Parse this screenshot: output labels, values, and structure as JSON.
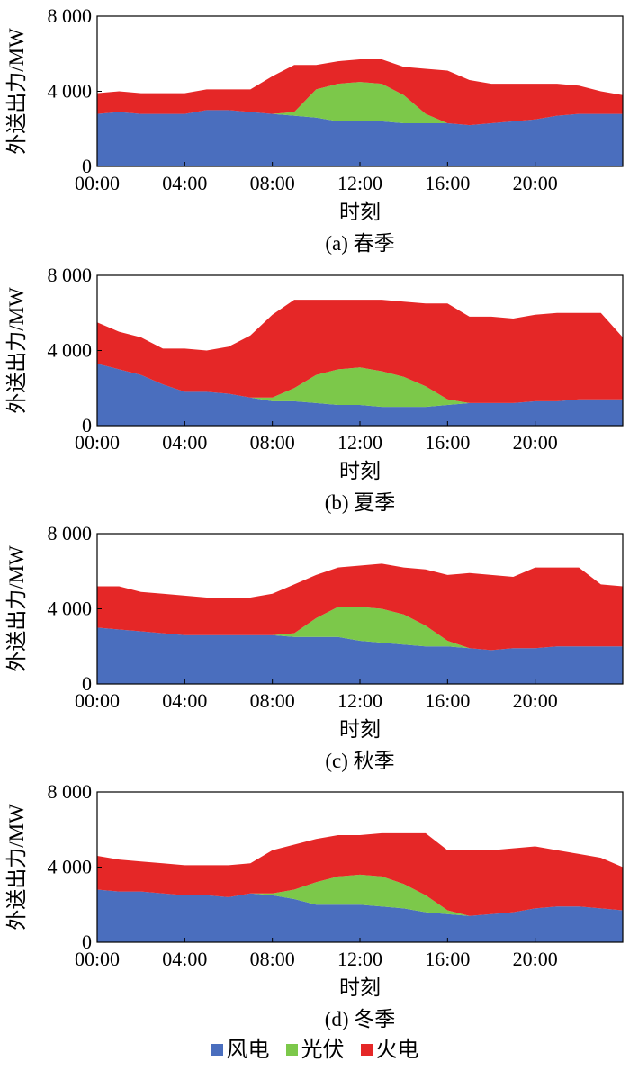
{
  "chart_data": [
    {
      "type": "area",
      "caption": "(a) 春季",
      "xlabel": "时刻",
      "ylabel": "外送出力/MW",
      "ylim": [
        0,
        8000
      ],
      "yticks": [
        "0",
        "4 000",
        "8 000"
      ],
      "xticks": [
        "00:00",
        "04:00",
        "08:00",
        "12:00",
        "16:00",
        "20:00"
      ],
      "x_hours": [
        0,
        1,
        2,
        3,
        4,
        5,
        6,
        7,
        8,
        9,
        10,
        11,
        12,
        13,
        14,
        15,
        16,
        17,
        18,
        19,
        20,
        21,
        22,
        23,
        24
      ],
      "stacked": true,
      "series": [
        {
          "name": "风电",
          "values": [
            2800,
            2900,
            2800,
            2800,
            2800,
            3000,
            3000,
            2900,
            2800,
            2700,
            2600,
            2400,
            2400,
            2400,
            2300,
            2300,
            2300,
            2200,
            2300,
            2400,
            2500,
            2700,
            2800,
            2800,
            2800
          ]
        },
        {
          "name": "光伏",
          "values": [
            0,
            0,
            0,
            0,
            0,
            0,
            0,
            0,
            0,
            200,
            1500,
            2000,
            2100,
            2000,
            1500,
            500,
            0,
            0,
            0,
            0,
            0,
            0,
            0,
            0,
            0
          ]
        },
        {
          "name": "火电",
          "values": [
            1100,
            1100,
            1100,
            1100,
            1100,
            1100,
            1100,
            1200,
            2000,
            2500,
            1300,
            1200,
            1200,
            1300,
            1500,
            2400,
            2800,
            2400,
            2100,
            2000,
            1900,
            1700,
            1500,
            1200,
            1000
          ]
        }
      ]
    },
    {
      "type": "area",
      "caption": "(b) 夏季",
      "xlabel": "时刻",
      "ylabel": "外送出力/MW",
      "ylim": [
        0,
        8000
      ],
      "yticks": [
        "0",
        "4 000",
        "8 000"
      ],
      "xticks": [
        "00:00",
        "04:00",
        "08:00",
        "12:00",
        "16:00",
        "20:00"
      ],
      "x_hours": [
        0,
        1,
        2,
        3,
        4,
        5,
        6,
        7,
        8,
        9,
        10,
        11,
        12,
        13,
        14,
        15,
        16,
        17,
        18,
        19,
        20,
        21,
        22,
        23,
        24
      ],
      "stacked": true,
      "series": [
        {
          "name": "风电",
          "values": [
            3300,
            3000,
            2700,
            2200,
            1800,
            1800,
            1700,
            1500,
            1300,
            1300,
            1200,
            1100,
            1100,
            1000,
            1000,
            1000,
            1100,
            1200,
            1200,
            1200,
            1300,
            1300,
            1400,
            1400,
            1400
          ]
        },
        {
          "name": "光伏",
          "values": [
            0,
            0,
            0,
            0,
            0,
            0,
            0,
            0,
            200,
            700,
            1500,
            1900,
            2000,
            1900,
            1600,
            1100,
            300,
            0,
            0,
            0,
            0,
            0,
            0,
            0,
            0
          ]
        },
        {
          "name": "火电",
          "values": [
            2200,
            2000,
            2000,
            1900,
            2300,
            2200,
            2500,
            3300,
            4400,
            4700,
            4000,
            3700,
            3600,
            3800,
            4000,
            4400,
            5100,
            4600,
            4600,
            4500,
            4600,
            4700,
            4600,
            4600,
            3300
          ]
        }
      ]
    },
    {
      "type": "area",
      "caption": "(c) 秋季",
      "xlabel": "时刻",
      "ylabel": "外送出力/MW",
      "ylim": [
        0,
        8000
      ],
      "yticks": [
        "0",
        "4 000",
        "8 000"
      ],
      "xticks": [
        "00:00",
        "04:00",
        "08:00",
        "12:00",
        "16:00",
        "20:00"
      ],
      "x_hours": [
        0,
        1,
        2,
        3,
        4,
        5,
        6,
        7,
        8,
        9,
        10,
        11,
        12,
        13,
        14,
        15,
        16,
        17,
        18,
        19,
        20,
        21,
        22,
        23,
        24
      ],
      "stacked": true,
      "series": [
        {
          "name": "风电",
          "values": [
            3000,
            2900,
            2800,
            2700,
            2600,
            2600,
            2600,
            2600,
            2600,
            2500,
            2500,
            2500,
            2300,
            2200,
            2100,
            2000,
            2000,
            1900,
            1800,
            1900,
            1900,
            2000,
            2000,
            2000,
            2000
          ]
        },
        {
          "name": "光伏",
          "values": [
            0,
            0,
            0,
            0,
            0,
            0,
            0,
            0,
            0,
            200,
            1000,
            1600,
            1800,
            1800,
            1600,
            1100,
            300,
            0,
            0,
            0,
            0,
            0,
            0,
            0,
            0
          ]
        },
        {
          "name": "火电",
          "values": [
            2200,
            2300,
            2100,
            2100,
            2100,
            2000,
            2000,
            2000,
            2200,
            2600,
            2300,
            2100,
            2200,
            2400,
            2500,
            3000,
            3500,
            4000,
            4000,
            3800,
            4300,
            4200,
            4200,
            3300,
            3200
          ]
        }
      ]
    },
    {
      "type": "area",
      "caption": "(d) 冬季",
      "xlabel": "时刻",
      "ylabel": "外送出力/MW",
      "ylim": [
        0,
        8000
      ],
      "yticks": [
        "0",
        "4 000",
        "8 000"
      ],
      "xticks": [
        "00:00",
        "04:00",
        "08:00",
        "12:00",
        "16:00",
        "20:00"
      ],
      "x_hours": [
        0,
        1,
        2,
        3,
        4,
        5,
        6,
        7,
        8,
        9,
        10,
        11,
        12,
        13,
        14,
        15,
        16,
        17,
        18,
        19,
        20,
        21,
        22,
        23,
        24
      ],
      "stacked": true,
      "series": [
        {
          "name": "风电",
          "values": [
            2800,
            2700,
            2700,
            2600,
            2500,
            2500,
            2400,
            2600,
            2500,
            2300,
            2000,
            2000,
            2000,
            1900,
            1800,
            1600,
            1500,
            1400,
            1500,
            1600,
            1800,
            1900,
            1900,
            1800,
            1700
          ]
        },
        {
          "name": "光伏",
          "values": [
            0,
            0,
            0,
            0,
            0,
            0,
            0,
            0,
            100,
            500,
            1200,
            1500,
            1600,
            1600,
            1300,
            900,
            200,
            0,
            0,
            0,
            0,
            0,
            0,
            0,
            0
          ]
        },
        {
          "name": "火电",
          "values": [
            1800,
            1700,
            1600,
            1600,
            1600,
            1600,
            1700,
            1600,
            2300,
            2400,
            2300,
            2200,
            2100,
            2300,
            2700,
            3300,
            3200,
            3500,
            3400,
            3400,
            3300,
            3000,
            2800,
            2700,
            2300
          ]
        }
      ]
    }
  ],
  "colors": {
    "风电": "#4a6ebe",
    "光伏": "#7cc84a",
    "火电": "#e52727"
  },
  "legend": [
    {
      "label": "风电",
      "color": "#4a6ebe"
    },
    {
      "label": "光伏",
      "color": "#7cc84a"
    },
    {
      "label": "火电",
      "color": "#e52727"
    }
  ]
}
